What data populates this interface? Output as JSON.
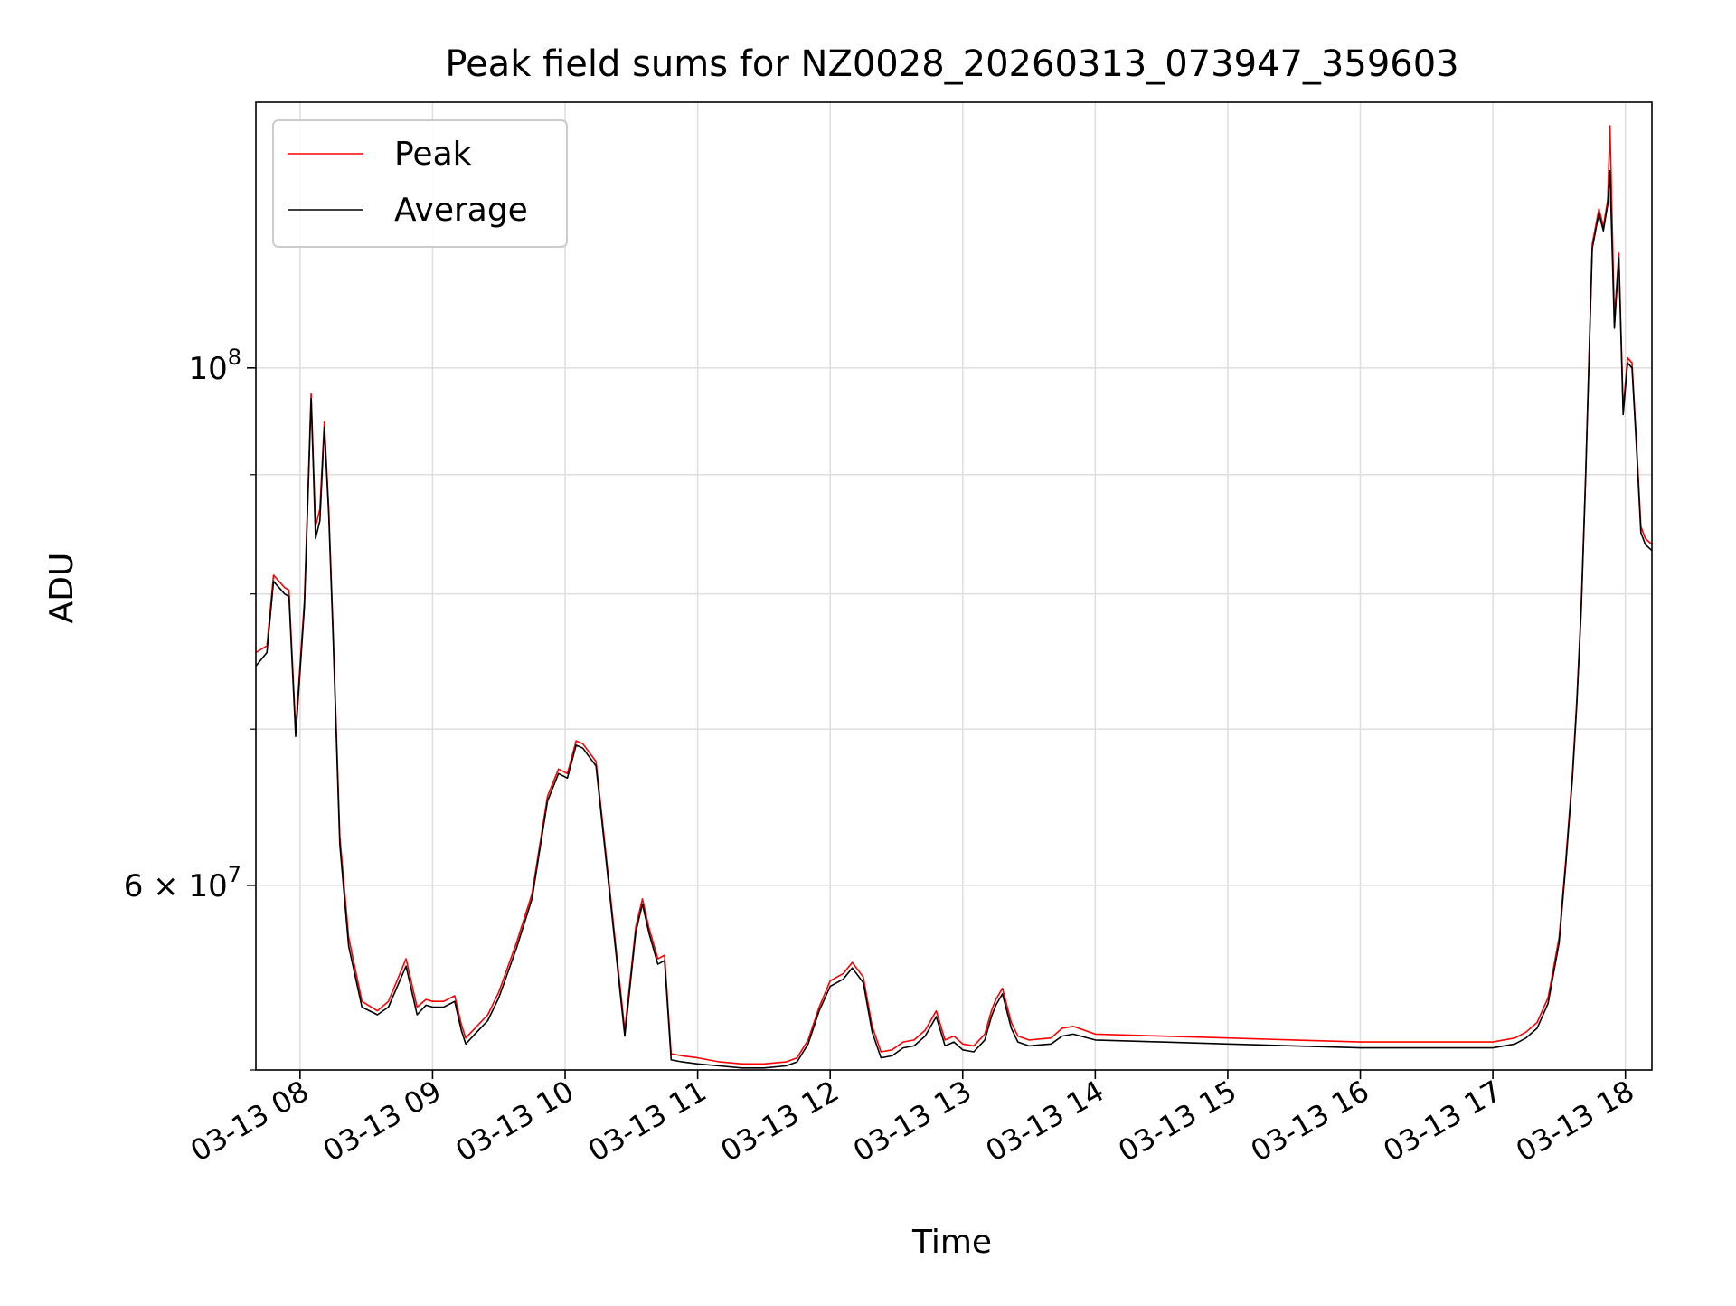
{
  "chart_data": {
    "type": "line",
    "title": "Peak field sums for NZ0028_20260313_073947_359603",
    "xlabel": "Time",
    "ylabel": "ADU",
    "yscale": "log",
    "xlim": [
      "03-13 07:40",
      "03-13 18:12"
    ],
    "ylim": [
      50000000,
      130000000
    ],
    "x_ticks": [
      "03-13 08",
      "03-13 09",
      "03-13 10",
      "03-13 11",
      "03-13 12",
      "03-13 13",
      "03-13 14",
      "03-13 15",
      "03-13 16",
      "03-13 17",
      "03-13 18"
    ],
    "y_ticks": [
      {
        "value": 100000000,
        "base": "10",
        "exp": "8"
      },
      {
        "value": 60000000,
        "mant": "6",
        "base": "10",
        "exp": "7"
      }
    ],
    "y_minor_ticks": [
      50000000,
      70000000,
      80000000,
      90000000
    ],
    "grid": true,
    "legend_position": "upper-left",
    "series": [
      {
        "name": "Peak",
        "color": "#ff0000",
        "x": [
          "03-13 07:40",
          "03-13 07:45",
          "03-13 07:48",
          "03-13 07:53",
          "03-13 07:55",
          "03-13 07:58",
          "03-13 08:02",
          "03-13 08:05",
          "03-13 08:07",
          "03-13 08:09",
          "03-13 08:11",
          "03-13 08:13",
          "03-13 08:15",
          "03-13 08:18",
          "03-13 08:22",
          "03-13 08:28",
          "03-13 08:35",
          "03-13 08:40",
          "03-13 08:48",
          "03-13 08:53",
          "03-13 08:57",
          "03-13 09:00",
          "03-13 09:05",
          "03-13 09:10",
          "03-13 09:13",
          "03-13 09:15",
          "03-13 09:20",
          "03-13 09:25",
          "03-13 09:30",
          "03-13 09:38",
          "03-13 09:45",
          "03-13 09:52",
          "03-13 09:57",
          "03-13 10:01",
          "03-13 10:05",
          "03-13 10:08",
          "03-13 10:14",
          "03-13 10:20",
          "03-13 10:27",
          "03-13 10:32",
          "03-13 10:35",
          "03-13 10:38",
          "03-13 10:42",
          "03-13 10:45",
          "03-13 10:48",
          "03-13 10:53",
          "03-13 11:00",
          "03-13 11:10",
          "03-13 11:20",
          "03-13 11:30",
          "03-13 11:40",
          "03-13 11:45",
          "03-13 11:50",
          "03-13 11:55",
          "03-13 12:00",
          "03-13 12:06",
          "03-13 12:10",
          "03-13 12:15",
          "03-13 12:19",
          "03-13 12:23",
          "03-13 12:28",
          "03-13 12:33",
          "03-13 12:38",
          "03-13 12:43",
          "03-13 12:48",
          "03-13 12:52",
          "03-13 12:56",
          "03-13 13:00",
          "03-13 13:05",
          "03-13 13:10",
          "03-13 13:13",
          "03-13 13:15",
          "03-13 13:18",
          "03-13 13:22",
          "03-13 13:25",
          "03-13 13:30",
          "03-13 13:40",
          "03-13 13:45",
          "03-13 13:50",
          "03-13 14:00",
          "03-13 14:30",
          "03-13 15:00",
          "03-13 15:30",
          "03-13 16:00",
          "03-13 16:30",
          "03-13 17:00",
          "03-13 17:10",
          "03-13 17:15",
          "03-13 17:20",
          "03-13 17:25",
          "03-13 17:30",
          "03-13 17:33",
          "03-13 17:36",
          "03-13 17:38",
          "03-13 17:40",
          "03-13 17:42",
          "03-13 17:45",
          "03-13 17:48",
          "03-13 17:50",
          "03-13 17:52",
          "03-13 17:53",
          "03-13 17:55",
          "03-13 17:57",
          "03-13 17:59",
          "03-13 18:01",
          "03-13 18:03",
          "03-13 18:05",
          "03-13 18:07",
          "03-13 18:09",
          "03-13 18:12"
        ],
        "values": [
          75500000,
          76000000,
          81500000,
          80500000,
          80300000,
          70000000,
          79500000,
          97500000,
          85500000,
          87000000,
          94800000,
          87000000,
          77000000,
          63000000,
          57000000,
          53500000,
          53000000,
          53500000,
          55800000,
          53200000,
          53600000,
          53500000,
          53500000,
          53800000,
          52300000,
          51600000,
          52200000,
          52800000,
          54000000,
          56700000,
          59500000,
          65500000,
          67300000,
          67000000,
          69200000,
          69000000,
          67800000,
          60000000,
          52000000,
          57600000,
          59200000,
          57500000,
          55800000,
          56000000,
          50800000,
          50700000,
          50600000,
          50400000,
          50300000,
          50300000,
          50400000,
          50600000,
          51500000,
          53200000,
          54600000,
          55000000,
          55600000,
          54800000,
          52200000,
          50900000,
          51000000,
          51400000,
          51500000,
          52000000,
          53000000,
          51500000,
          51700000,
          51300000,
          51200000,
          51800000,
          53000000,
          53600000,
          54200000,
          52400000,
          51700000,
          51500000,
          51600000,
          52100000,
          52200000,
          51800000,
          51700000,
          51600000,
          51500000,
          51400000,
          51400000,
          51400000,
          51600000,
          51900000,
          52400000,
          53700000,
          57000000,
          61500000,
          67000000,
          72000000,
          79000000,
          90000000,
          113000000,
          117000000,
          115000000,
          118000000,
          127000000,
          105000000,
          112000000,
          96000000,
          101000000,
          100500000,
          93000000,
          85500000,
          84500000,
          84000000
        ]
      },
      {
        "name": "Average",
        "color": "#000000",
        "x": [
          "03-13 07:40",
          "03-13 07:45",
          "03-13 07:48",
          "03-13 07:53",
          "03-13 07:55",
          "03-13 07:58",
          "03-13 08:02",
          "03-13 08:05",
          "03-13 08:07",
          "03-13 08:09",
          "03-13 08:11",
          "03-13 08:13",
          "03-13 08:15",
          "03-13 08:18",
          "03-13 08:22",
          "03-13 08:28",
          "03-13 08:35",
          "03-13 08:40",
          "03-13 08:48",
          "03-13 08:53",
          "03-13 08:57",
          "03-13 09:00",
          "03-13 09:05",
          "03-13 09:10",
          "03-13 09:13",
          "03-13 09:15",
          "03-13 09:20",
          "03-13 09:25",
          "03-13 09:30",
          "03-13 09:38",
          "03-13 09:45",
          "03-13 09:52",
          "03-13 09:57",
          "03-13 10:01",
          "03-13 10:05",
          "03-13 10:08",
          "03-13 10:14",
          "03-13 10:20",
          "03-13 10:27",
          "03-13 10:32",
          "03-13 10:35",
          "03-13 10:38",
          "03-13 10:42",
          "03-13 10:45",
          "03-13 10:48",
          "03-13 10:53",
          "03-13 11:00",
          "03-13 11:10",
          "03-13 11:20",
          "03-13 11:30",
          "03-13 11:40",
          "03-13 11:45",
          "03-13 11:50",
          "03-13 11:55",
          "03-13 12:00",
          "03-13 12:06",
          "03-13 12:10",
          "03-13 12:15",
          "03-13 12:19",
          "03-13 12:23",
          "03-13 12:28",
          "03-13 12:33",
          "03-13 12:38",
          "03-13 12:43",
          "03-13 12:48",
          "03-13 12:52",
          "03-13 12:56",
          "03-13 13:00",
          "03-13 13:05",
          "03-13 13:10",
          "03-13 13:13",
          "03-13 13:15",
          "03-13 13:18",
          "03-13 13:22",
          "03-13 13:25",
          "03-13 13:30",
          "03-13 13:40",
          "03-13 13:45",
          "03-13 13:50",
          "03-13 14:00",
          "03-13 14:30",
          "03-13 15:00",
          "03-13 15:30",
          "03-13 16:00",
          "03-13 16:30",
          "03-13 17:00",
          "03-13 17:10",
          "03-13 17:15",
          "03-13 17:20",
          "03-13 17:25",
          "03-13 17:30",
          "03-13 17:33",
          "03-13 17:36",
          "03-13 17:38",
          "03-13 17:40",
          "03-13 17:42",
          "03-13 17:45",
          "03-13 17:48",
          "03-13 17:50",
          "03-13 17:52",
          "03-13 17:53",
          "03-13 17:55",
          "03-13 17:57",
          "03-13 17:59",
          "03-13 18:01",
          "03-13 18:03",
          "03-13 18:05",
          "03-13 18:07",
          "03-13 18:09",
          "03-13 18:12"
        ],
        "values": [
          74500000,
          75500000,
          81000000,
          80000000,
          79800000,
          69500000,
          79000000,
          97000000,
          84500000,
          86000000,
          94300000,
          86500000,
          76500000,
          62500000,
          56500000,
          53200000,
          52800000,
          53200000,
          55400000,
          52800000,
          53300000,
          53200000,
          53200000,
          53500000,
          52000000,
          51300000,
          51900000,
          52500000,
          53700000,
          56400000,
          59200000,
          65200000,
          67000000,
          66700000,
          68900000,
          68700000,
          67500000,
          59700000,
          51700000,
          57300000,
          58900000,
          57200000,
          55500000,
          55700000,
          50500000,
          50400000,
          50300000,
          50200000,
          50100000,
          50100000,
          50200000,
          50400000,
          51300000,
          53000000,
          54300000,
          54700000,
          55300000,
          54500000,
          51900000,
          50600000,
          50700000,
          51100000,
          51200000,
          51700000,
          52700000,
          51200000,
          51400000,
          51000000,
          50900000,
          51500000,
          52700000,
          53300000,
          53900000,
          52100000,
          51400000,
          51200000,
          51300000,
          51700000,
          51800000,
          51500000,
          51400000,
          51300000,
          51200000,
          51100000,
          51100000,
          51100000,
          51300000,
          51600000,
          52100000,
          53400000,
          56700000,
          61200000,
          66700000,
          71700000,
          78700000,
          89700000,
          112500000,
          116500000,
          114500000,
          117500000,
          121500000,
          104000000,
          111500000,
          95500000,
          100500000,
          100000000,
          92500000,
          85000000,
          84000000,
          83500000
        ]
      }
    ]
  }
}
